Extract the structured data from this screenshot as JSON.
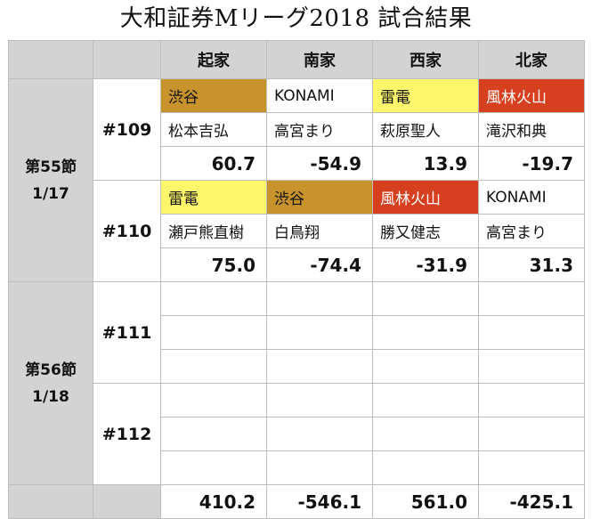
{
  "title": "大和証券Mリーグ2018 試合結果",
  "colors": {
    "渋谷": "#c8932c",
    "雷電": "#fdf66b",
    "風林火山": "#d7401f",
    "KONAMI": "#ffffff"
  },
  "header": {
    "seats": [
      "起家",
      "南家",
      "西家",
      "北家"
    ]
  },
  "sections": [
    {
      "label": "第55節",
      "date": "1/17",
      "matches": [
        {
          "no": "#109",
          "teams": [
            "渋谷",
            "KONAMI",
            "雷電",
            "風林火山"
          ],
          "players": [
            "松本吉弘",
            "高宮まり",
            "萩原聖人",
            "滝沢和典"
          ],
          "scores": [
            "60.7",
            "-54.9",
            "13.9",
            "-19.7"
          ]
        },
        {
          "no": "#110",
          "teams": [
            "雷電",
            "渋谷",
            "風林火山",
            "KONAMI"
          ],
          "players": [
            "瀬戸熊直樹",
            "白鳥翔",
            "勝又健志",
            "高宮まり"
          ],
          "scores": [
            "75.0",
            "-74.4",
            "-31.9",
            "31.3"
          ]
        }
      ]
    },
    {
      "label": "第56節",
      "date": "1/18",
      "matches": [
        {
          "no": "#111"
        },
        {
          "no": "#112"
        }
      ]
    }
  ],
  "totals": [
    "410.2",
    "-546.1",
    "561.0",
    "-425.1"
  ]
}
